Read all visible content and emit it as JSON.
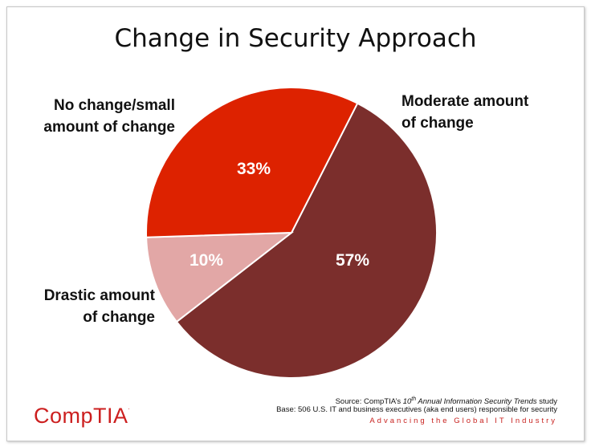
{
  "chart_data": {
    "type": "pie",
    "title": "Change in Security Approach",
    "slices": [
      {
        "label": "Moderate amount of change",
        "value": 57,
        "display": "57%",
        "color": "#7b2e2c"
      },
      {
        "label": "Drastic amount of change",
        "value": 10,
        "display": "10%",
        "color": "#e2a7a6"
      },
      {
        "label": "No change/small amount of change",
        "value": 33,
        "display": "33%",
        "color": "#dd2200"
      }
    ]
  },
  "labels": {
    "no_change_line1": "No change/small",
    "no_change_line2": "amount of change",
    "moderate_line1": "Moderate amount",
    "moderate_line2": "of change",
    "drastic_line1": "Drastic amount",
    "drastic_line2": "of change"
  },
  "footer": {
    "source_prefix": "Source: CompTIA’s ",
    "source_ordinal": "10",
    "source_ordinal_sup": "th",
    "source_study": " Annual Information Security Trends",
    "source_suffix": " study",
    "base": "Base: 506 U.S. IT and business executives (aka end users) responsible for security",
    "tagline": "Advancing the Global IT Industry"
  },
  "logo": {
    "text": "CompTIA",
    "tm": "."
  }
}
